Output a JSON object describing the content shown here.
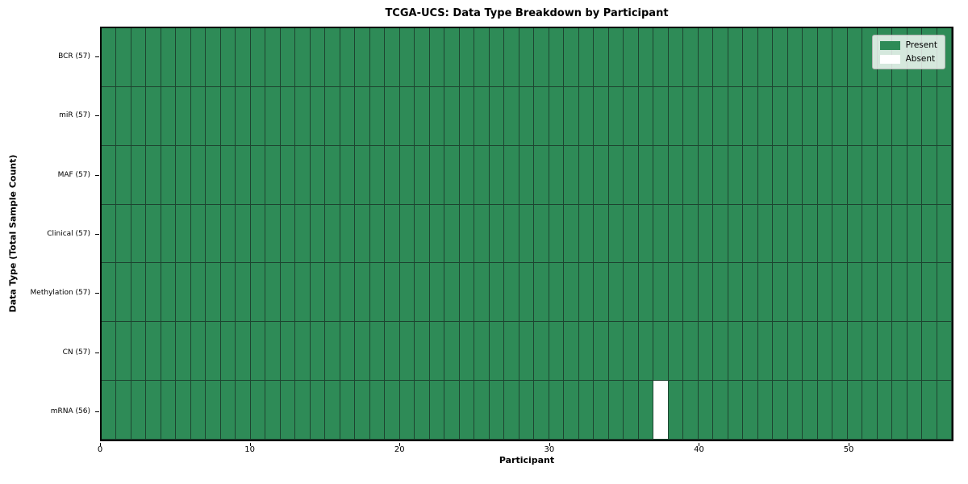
{
  "title": "TCGA-UCS: Data Type Breakdown by Participant",
  "xlabel": "Participant",
  "ylabel": "Data Type (Total Sample Count)",
  "colors": {
    "present": "#2E8B57",
    "absent": "#FFFFFF",
    "cell_edge": "#1D4430",
    "spine": "#000000",
    "legend_border": "#B3B3B3"
  },
  "legend": {
    "present_label": "Present",
    "absent_label": "Absent"
  },
  "chart_data": {
    "type": "heatmap",
    "title": "TCGA-UCS: Data Type Breakdown by Participant",
    "xlabel": "Participant",
    "ylabel": "Data Type (Total Sample Count)",
    "xlim": [
      0,
      57
    ],
    "n_participants": 57,
    "x_ticks": [
      0,
      10,
      20,
      30,
      40,
      50
    ],
    "legend_entries": [
      "Present",
      "Absent"
    ],
    "legend_position": "upper right",
    "grid": false,
    "rows": [
      {
        "label": "BCR (57)",
        "data_type": "BCR",
        "present_count": 57,
        "absent_participants": []
      },
      {
        "label": "miR (57)",
        "data_type": "miR",
        "present_count": 57,
        "absent_participants": []
      },
      {
        "label": "MAF (57)",
        "data_type": "MAF",
        "present_count": 57,
        "absent_participants": []
      },
      {
        "label": "Clinical (57)",
        "data_type": "Clinical",
        "present_count": 57,
        "absent_participants": []
      },
      {
        "label": "Methylation (57)",
        "data_type": "Methylation",
        "present_count": 57,
        "absent_participants": []
      },
      {
        "label": "CN (57)",
        "data_type": "CN",
        "present_count": 57,
        "absent_participants": []
      },
      {
        "label": "mRNA (56)",
        "data_type": "mRNA",
        "present_count": 56,
        "absent_participants": [
          37
        ]
      }
    ]
  }
}
